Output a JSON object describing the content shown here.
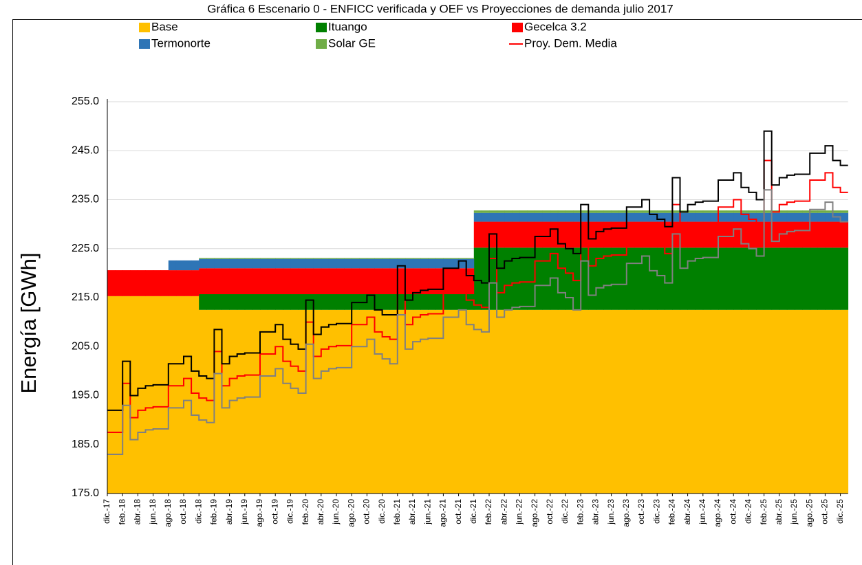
{
  "chart_data": {
    "type": "area",
    "title": "Gráfica 6 Escenario 0 - ENFICC verificada y OEF vs Proyecciones de demanda julio 2017",
    "y_label": "Energía [GWh]",
    "categories": [
      "dic.-17",
      null,
      "feb.-18",
      null,
      "abr.-18",
      null,
      "jun.-18",
      null,
      "ago.-18",
      null,
      "oct.-18",
      null,
      "dic.-18",
      null,
      "feb.-19",
      null,
      "abr.-19",
      null,
      "jun.-19",
      null,
      "ago.-19",
      null,
      "oct.-19",
      null,
      "dic.-19",
      null,
      "feb.-20",
      null,
      "abr.-20",
      null,
      "jun.-20",
      null,
      "ago.-20",
      null,
      "oct.-20",
      null,
      "dic.-20",
      null,
      "feb.-21",
      null,
      "abr.-21",
      null,
      "jun.-21",
      null,
      "ago.-21",
      null,
      "oct.-21",
      null,
      "dic.-21",
      null,
      "feb.-22",
      null,
      "abr.-22",
      null,
      "jun.-22",
      null,
      "ago.-22",
      null,
      "oct.-22",
      null,
      "dic.-22",
      null,
      "feb.-23",
      null,
      "abr.-23",
      null,
      "jun.-23",
      null,
      "ago.-23",
      null,
      "oct.-23",
      null,
      "dic.-23",
      null,
      "feb.-24",
      null,
      "abr.-24",
      null,
      "jun.-24",
      null,
      "ago.-24",
      null,
      "oct.-24",
      null,
      "dic.-24",
      null,
      "feb.-25",
      null,
      "abr.-25",
      null,
      "jun.-25",
      null,
      "ago.-25",
      null,
      "oct.-25",
      null,
      "dic.-25"
    ],
    "ylim": [
      175,
      255
    ],
    "yticks": [
      {
        "value": 175,
        "label": "175.0"
      },
      {
        "value": 185,
        "label": "185.0"
      },
      {
        "value": 195,
        "label": "195.0"
      },
      {
        "value": 205,
        "label": "205.0"
      },
      {
        "value": 215,
        "label": "215.0"
      },
      {
        "value": 225,
        "label": "225.0"
      },
      {
        "value": 235,
        "label": "235.0"
      },
      {
        "value": 245,
        "label": "245.0"
      },
      {
        "value": 255,
        "label": "255.0"
      }
    ],
    "grid": true,
    "series": [
      {
        "name": "Base",
        "type": "area",
        "color": "#ffc000",
        "values": [
          215.3,
          215.3,
          215.3,
          215.3,
          215.3,
          215.3,
          215.3,
          215.3,
          215.3,
          215.3,
          215.3,
          215.3,
          212.5,
          212.5,
          212.5,
          212.5,
          212.5,
          212.5,
          212.5,
          212.5,
          212.5,
          212.5,
          212.5,
          212.5,
          212.5,
          212.5,
          212.5,
          212.5,
          212.5,
          212.5,
          212.5,
          212.5,
          212.5,
          212.5,
          212.5,
          212.5,
          212.5,
          212.5,
          212.5,
          212.5,
          212.5,
          212.5,
          212.5,
          212.5,
          212.5,
          212.5,
          212.5,
          212.5,
          212.5,
          212.5,
          212.5,
          212.5,
          212.5,
          212.5,
          212.5,
          212.5,
          212.5,
          212.5,
          212.5,
          212.5,
          212.5,
          212.5,
          212.5,
          212.5,
          212.5,
          212.5,
          212.5,
          212.5,
          212.5,
          212.5,
          212.5,
          212.5,
          212.5,
          212.5,
          212.5,
          212.5,
          212.5,
          212.5,
          212.5,
          212.5,
          212.5,
          212.5,
          212.5,
          212.5,
          212.5,
          212.5,
          212.5,
          212.5,
          212.5,
          212.5,
          212.5,
          212.5,
          212.5,
          212.5,
          212.5,
          212.5,
          212.5
        ]
      },
      {
        "name": "Ituango",
        "type": "area",
        "color": "#008000",
        "values": [
          0,
          0,
          0,
          0,
          0,
          0,
          0,
          0,
          0,
          0,
          0,
          0,
          3.2,
          3.2,
          3.2,
          3.2,
          3.2,
          3.2,
          3.2,
          3.2,
          3.2,
          3.2,
          3.2,
          3.2,
          3.2,
          3.2,
          3.2,
          3.2,
          3.2,
          3.2,
          3.2,
          3.2,
          3.2,
          3.2,
          3.2,
          3.2,
          3.2,
          3.2,
          3.2,
          3.2,
          3.2,
          3.2,
          3.2,
          3.2,
          3.2,
          3.2,
          3.2,
          3.2,
          12.7,
          12.7,
          12.7,
          12.7,
          12.7,
          12.7,
          12.7,
          12.7,
          12.7,
          12.7,
          12.7,
          12.7,
          12.7,
          12.7,
          12.7,
          12.7,
          12.7,
          12.7,
          12.7,
          12.7,
          12.7,
          12.7,
          12.7,
          12.7,
          12.7,
          12.7,
          12.7,
          12.7,
          12.7,
          12.7,
          12.7,
          12.7,
          12.7,
          12.7,
          12.7,
          12.7,
          12.7,
          12.7,
          12.7,
          12.7,
          12.7,
          12.7,
          12.7,
          12.7,
          12.7,
          12.7,
          12.7,
          12.7,
          12.7
        ]
      },
      {
        "name": "Gecelca 3.2",
        "type": "area",
        "color": "#ff0000",
        "values": [
          5.3,
          5.3,
          5.3,
          5.3,
          5.3,
          5.3,
          5.3,
          5.3,
          5.3,
          5.3,
          5.3,
          5.3,
          5.3,
          5.3,
          5.3,
          5.3,
          5.3,
          5.3,
          5.3,
          5.3,
          5.3,
          5.3,
          5.3,
          5.3,
          5.3,
          5.3,
          5.3,
          5.3,
          5.3,
          5.3,
          5.3,
          5.3,
          5.3,
          5.3,
          5.3,
          5.3,
          5.3,
          5.3,
          5.3,
          5.3,
          5.3,
          5.3,
          5.3,
          5.3,
          5.3,
          5.3,
          5.3,
          5.3,
          5.3,
          5.3,
          5.3,
          5.3,
          5.3,
          5.3,
          5.3,
          5.3,
          5.3,
          5.3,
          5.3,
          5.3,
          5.3,
          5.3,
          5.3,
          5.3,
          5.3,
          5.3,
          5.3,
          5.3,
          5.3,
          5.3,
          5.3,
          5.3,
          5.3,
          5.3,
          5.3,
          5.3,
          5.3,
          5.3,
          5.3,
          5.3,
          5.3,
          5.3,
          5.3,
          5.3,
          5.3,
          5.3,
          5.3,
          5.3,
          5.3,
          5.3,
          5.3,
          5.3,
          5.3,
          5.3,
          5.3,
          5.3,
          5.3
        ]
      },
      {
        "name": "Termonorte",
        "type": "area",
        "color": "#2e75b6",
        "values": [
          0,
          0,
          0,
          0,
          0,
          0,
          0,
          0,
          2.0,
          2.0,
          2.0,
          2.0,
          1.9,
          1.9,
          1.9,
          1.9,
          1.9,
          1.9,
          1.9,
          1.9,
          1.9,
          1.9,
          1.9,
          1.9,
          1.9,
          1.9,
          1.9,
          1.9,
          1.9,
          1.9,
          1.9,
          1.9,
          1.9,
          1.9,
          1.9,
          1.9,
          1.9,
          1.9,
          1.9,
          1.9,
          1.9,
          1.9,
          1.9,
          1.9,
          1.9,
          1.9,
          1.9,
          1.9,
          1.8,
          1.8,
          1.8,
          1.8,
          1.8,
          1.8,
          1.8,
          1.8,
          1.8,
          1.8,
          1.8,
          1.8,
          1.8,
          1.8,
          1.8,
          1.8,
          1.8,
          1.8,
          1.8,
          1.8,
          1.8,
          1.8,
          1.8,
          1.8,
          1.8,
          1.8,
          1.8,
          1.8,
          1.8,
          1.8,
          1.8,
          1.8,
          1.8,
          1.8,
          1.8,
          1.8,
          1.8,
          1.8,
          1.8,
          1.8,
          1.8,
          1.8,
          1.8,
          1.8,
          1.8,
          1.8,
          1.8,
          1.8,
          1.8
        ]
      },
      {
        "name": "Solar GE",
        "type": "area",
        "color": "#70ad47",
        "values": [
          0,
          0,
          0,
          0,
          0,
          0,
          0,
          0,
          0,
          0,
          0,
          0,
          0.2,
          0.2,
          0.2,
          0.2,
          0.2,
          0.2,
          0.2,
          0.2,
          0.2,
          0.2,
          0.2,
          0.2,
          0.2,
          0.2,
          0.2,
          0.2,
          0.2,
          0.2,
          0.2,
          0.2,
          0.2,
          0.2,
          0.2,
          0.2,
          0.2,
          0.2,
          0.2,
          0.2,
          0.2,
          0.2,
          0.2,
          0.2,
          0.2,
          0.2,
          0.2,
          0.2,
          0.5,
          0.5,
          0.5,
          0.5,
          0.5,
          0.5,
          0.5,
          0.5,
          0.5,
          0.5,
          0.5,
          0.5,
          0.5,
          0.5,
          0.5,
          0.5,
          0.5,
          0.5,
          0.5,
          0.5,
          0.5,
          0.5,
          0.5,
          0.5,
          0.5,
          0.5,
          0.5,
          0.5,
          0.5,
          0.5,
          0.5,
          0.5,
          0.5,
          0.5,
          0.5,
          0.5,
          0.5,
          0.5,
          0.5,
          0.5,
          0.5,
          0.5,
          0.5,
          0.5,
          0.5,
          0.5,
          0.5,
          0.5,
          0.5
        ]
      },
      {
        "name": "Proy. Dem. Media",
        "type": "line",
        "color": "#ff0000",
        "values": [
          187.5,
          187.5,
          197.5,
          190.5,
          192,
          192.5,
          192.7,
          192.7,
          197,
          197,
          198.5,
          195.5,
          194.5,
          194,
          204,
          197,
          198.5,
          199,
          199.2,
          199.2,
          203.5,
          203.5,
          205,
          202,
          201,
          200,
          210,
          203,
          204.5,
          205,
          205.2,
          205.2,
          209.5,
          209.5,
          211,
          208,
          207,
          206.5,
          216.5,
          209.5,
          211,
          211.5,
          211.7,
          211.7,
          216,
          216,
          217.5,
          214.5,
          213.5,
          213,
          223,
          216,
          217.5,
          218,
          218.2,
          218.2,
          222.5,
          222.5,
          224,
          221,
          220,
          218.5,
          228.5,
          221.5,
          223,
          223.5,
          223.7,
          223.7,
          228,
          228,
          229.5,
          226.5,
          225.5,
          224,
          234,
          227,
          228.5,
          229,
          229.2,
          229.2,
          233.5,
          233.5,
          235,
          232,
          231,
          229.5,
          243,
          232.5,
          234,
          234.5,
          234.7,
          234.7,
          239,
          239,
          240.5,
          237.5,
          236.5
        ]
      },
      {
        "type": "line",
        "color": "#000000",
        "values": [
          192,
          192,
          202,
          195,
          196.5,
          197,
          197.2,
          197.2,
          201.5,
          201.5,
          203,
          200,
          199,
          198.5,
          208.5,
          201.5,
          203,
          203.5,
          203.7,
          203.7,
          208,
          208,
          209.5,
          206.5,
          205.5,
          204.5,
          214.5,
          207.5,
          209,
          209.5,
          209.7,
          209.7,
          214,
          214,
          215.5,
          212.5,
          211.5,
          211.5,
          221.5,
          214.5,
          216,
          216.5,
          216.7,
          216.7,
          221,
          221,
          222.5,
          219.5,
          218.5,
          218,
          228,
          221,
          222.5,
          223,
          223.2,
          223.2,
          227.5,
          227.5,
          229,
          226,
          225,
          224,
          234,
          227,
          228.5,
          229,
          229.2,
          229.2,
          233.5,
          233.5,
          235,
          232,
          231,
          229.5,
          239.5,
          232.5,
          234,
          234.5,
          234.7,
          234.7,
          239,
          239,
          240.5,
          237.5,
          236.5,
          235,
          249,
          238,
          239.5,
          240,
          240.2,
          240.2,
          244.5,
          244.5,
          246,
          243,
          242
        ]
      },
      {
        "type": "line",
        "color": "#808080",
        "values": [
          183,
          183,
          193,
          186,
          187.5,
          188,
          188.2,
          188.2,
          192.5,
          192.5,
          194,
          191,
          190,
          189.5,
          199.5,
          192.5,
          194,
          194.5,
          194.7,
          194.7,
          199,
          199,
          200.5,
          197.5,
          196.5,
          195.5,
          205.5,
          198.5,
          200,
          200.5,
          200.7,
          200.7,
          205,
          205,
          206.5,
          203.5,
          202.5,
          201.5,
          211.5,
          204.5,
          206,
          206.5,
          206.7,
          206.7,
          211,
          211,
          212.5,
          209.5,
          208.5,
          208,
          218,
          211,
          212.5,
          213,
          213.2,
          213.2,
          217.5,
          217.5,
          219,
          216,
          215,
          212.5,
          222.5,
          215.5,
          217,
          217.5,
          217.7,
          217.7,
          222,
          222,
          223.5,
          220.5,
          219.5,
          218,
          228,
          221,
          222.5,
          223,
          223.2,
          223.2,
          227.5,
          227.5,
          229,
          226,
          225,
          223.5,
          237,
          226.5,
          228,
          228.5,
          228.7,
          228.7,
          233,
          233,
          234.5,
          231.5,
          230.5
        ]
      }
    ]
  }
}
